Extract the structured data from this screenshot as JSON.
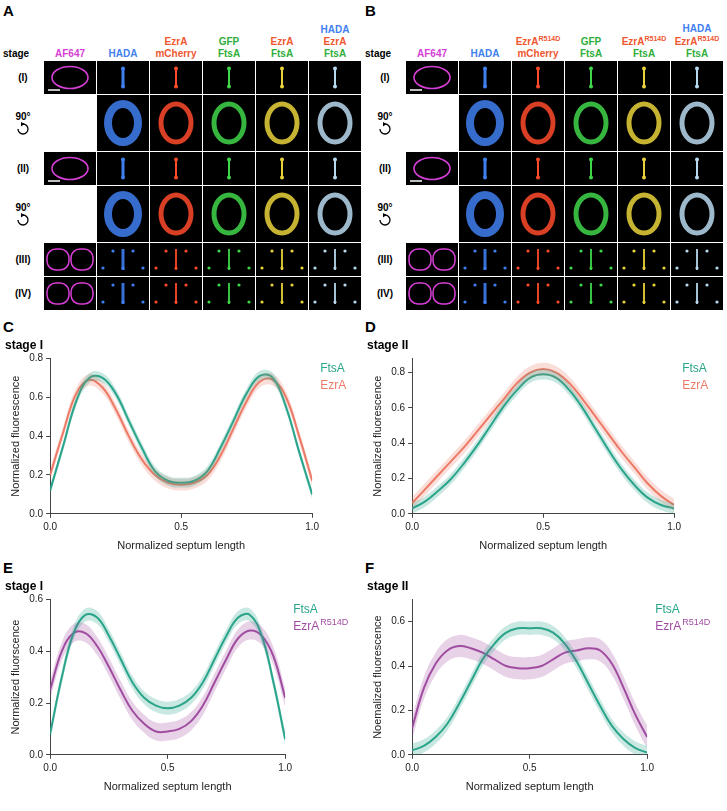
{
  "panels": [
    {
      "letter": "A",
      "stage_header": "stage",
      "columns": [
        [
          {
            "text": "AF647",
            "color": "#d63fd6"
          }
        ],
        [
          {
            "text": "HADA",
            "color": "#3f7ff0"
          }
        ],
        [
          {
            "text": "EzrA",
            "color": "#f0562f"
          },
          {
            "text": "mCherry",
            "color": "#f0562f"
          }
        ],
        [
          {
            "text": "GFP",
            "color": "#2fae3a"
          },
          {
            "text": "FtsA",
            "color": "#2fae3a"
          }
        ],
        [
          {
            "text": "EzrA",
            "color": "#f0562f"
          },
          {
            "text": "FtsA",
            "color": "#2fae3a"
          }
        ],
        [
          {
            "text": "HADA",
            "color": "#3f7ff0"
          },
          {
            "text": "EzrA",
            "color": "#f0562f"
          },
          {
            "text": "FtsA",
            "color": "#2fae3a"
          }
        ]
      ],
      "rows": [
        {
          "label": "(I)"
        },
        {
          "label": "90°",
          "rotated": true
        },
        {
          "label": "(II)"
        },
        {
          "label": "90°",
          "rotated": true
        },
        {
          "label": "(III)"
        },
        {
          "label": "(IV)"
        }
      ]
    },
    {
      "letter": "B",
      "stage_header": "stage",
      "columns": [
        [
          {
            "text": "AF647",
            "color": "#d63fd6"
          }
        ],
        [
          {
            "text": "HADA",
            "color": "#3f7ff0"
          }
        ],
        [
          {
            "text": "EzrA",
            "sup": "R514D",
            "color": "#f0562f"
          },
          {
            "text": "mCherry",
            "color": "#f0562f"
          }
        ],
        [
          {
            "text": "GFP",
            "color": "#2fae3a"
          },
          {
            "text": "FtsA",
            "color": "#2fae3a"
          }
        ],
        [
          {
            "text": "EzrA",
            "sup": "R514D",
            "color": "#f0562f"
          },
          {
            "text": "FtsA",
            "color": "#2fae3a"
          }
        ],
        [
          {
            "text": "HADA",
            "color": "#3f7ff0"
          },
          {
            "text": "EzrA",
            "sup": "R514D",
            "color": "#f0562f"
          },
          {
            "text": "FtsA",
            "color": "#2fae3a"
          }
        ]
      ],
      "rows": [
        {
          "label": "(I)"
        },
        {
          "label": "90°",
          "rotated": true
        },
        {
          "label": "(II)"
        },
        {
          "label": "90°",
          "rotated": true
        },
        {
          "label": "(III)"
        },
        {
          "label": "(IV)"
        }
      ]
    }
  ],
  "chart_data": [
    {
      "letter": "C",
      "type": "line",
      "title": "stage I",
      "x_label": "Normalized septum length",
      "y_label": "Normalized fluorescence",
      "x": [
        0,
        0.05,
        0.1,
        0.15,
        0.2,
        0.25,
        0.3,
        0.35,
        0.4,
        0.45,
        0.5,
        0.55,
        0.6,
        0.65,
        0.7,
        0.75,
        0.8,
        0.85,
        0.9,
        0.95,
        1
      ],
      "xlim": [
        0,
        1
      ],
      "xticks": [
        {
          "value": 0,
          "label": "0.0"
        },
        {
          "value": 0.5,
          "label": "0.5"
        },
        {
          "value": 1,
          "label": "1.0"
        }
      ],
      "ylim": [
        0,
        0.8
      ],
      "yticks": [
        {
          "value": 0,
          "label": "0.0"
        },
        {
          "value": 0.2,
          "label": "0.2"
        },
        {
          "value": 0.4,
          "label": "0.4"
        },
        {
          "value": 0.6,
          "label": "0.6"
        },
        {
          "value": 0.8,
          "label": "0.8"
        }
      ],
      "grid": false,
      "legend": "right",
      "series": [
        {
          "name": "FtsA",
          "color": "#2aa58a",
          "error": 0.025,
          "values": [
            0.12,
            0.35,
            0.58,
            0.7,
            0.7,
            0.62,
            0.48,
            0.34,
            0.22,
            0.17,
            0.16,
            0.17,
            0.22,
            0.34,
            0.48,
            0.62,
            0.71,
            0.7,
            0.55,
            0.32,
            0.1
          ]
        },
        {
          "name": "EzrA",
          "color": "#ec7a66",
          "error": 0.03,
          "values": [
            0.2,
            0.42,
            0.62,
            0.69,
            0.65,
            0.54,
            0.4,
            0.28,
            0.2,
            0.16,
            0.15,
            0.16,
            0.2,
            0.3,
            0.44,
            0.58,
            0.68,
            0.69,
            0.6,
            0.4,
            0.17
          ]
        }
      ]
    },
    {
      "letter": "D",
      "type": "line",
      "title": "stage II",
      "x_label": "Normalized septum length",
      "y_label": "Normalized fluorescence",
      "x": [
        0,
        0.05,
        0.1,
        0.15,
        0.2,
        0.25,
        0.3,
        0.35,
        0.4,
        0.45,
        0.5,
        0.55,
        0.6,
        0.65,
        0.7,
        0.75,
        0.8,
        0.85,
        0.9,
        0.95,
        1
      ],
      "xlim": [
        0,
        1
      ],
      "xticks": [
        {
          "value": 0,
          "label": "0.0"
        },
        {
          "value": 0.5,
          "label": "0.5"
        },
        {
          "value": 1,
          "label": "1.0"
        }
      ],
      "ylim": [
        0,
        0.88
      ],
      "yticks": [
        {
          "value": 0,
          "label": "0.0"
        },
        {
          "value": 0.2,
          "label": "0.2"
        },
        {
          "value": 0.4,
          "label": "0.4"
        },
        {
          "value": 0.6,
          "label": "0.6"
        },
        {
          "value": 0.8,
          "label": "0.8"
        }
      ],
      "grid": false,
      "legend": "right",
      "series": [
        {
          "name": "FtsA",
          "color": "#2aa58a",
          "error": 0.03,
          "values": [
            0.03,
            0.07,
            0.13,
            0.2,
            0.29,
            0.39,
            0.5,
            0.61,
            0.7,
            0.77,
            0.79,
            0.77,
            0.7,
            0.6,
            0.48,
            0.36,
            0.25,
            0.16,
            0.09,
            0.05,
            0.03
          ]
        },
        {
          "name": "EzrA",
          "color": "#ec7a66",
          "error": 0.035,
          "values": [
            0.06,
            0.14,
            0.22,
            0.3,
            0.38,
            0.47,
            0.56,
            0.65,
            0.74,
            0.8,
            0.82,
            0.8,
            0.74,
            0.65,
            0.55,
            0.45,
            0.35,
            0.26,
            0.17,
            0.1,
            0.05
          ]
        }
      ]
    },
    {
      "letter": "E",
      "type": "line",
      "title": "stage I",
      "x_label": "Normalized septum length",
      "y_label": "Normalized fluorscence",
      "x": [
        0,
        0.05,
        0.1,
        0.15,
        0.2,
        0.25,
        0.3,
        0.35,
        0.4,
        0.45,
        0.5,
        0.55,
        0.6,
        0.65,
        0.7,
        0.75,
        0.8,
        0.85,
        0.9,
        0.95,
        1
      ],
      "xlim": [
        0,
        1
      ],
      "xticks": [
        {
          "value": 0,
          "label": "0.0"
        },
        {
          "value": 0.5,
          "label": "0.5"
        },
        {
          "value": 1,
          "label": "1.0"
        }
      ],
      "ylim": [
        0,
        0.6
      ],
      "yticks": [
        {
          "value": 0,
          "label": "0.0"
        },
        {
          "value": 0.2,
          "label": "0.2"
        },
        {
          "value": 0.4,
          "label": "0.4"
        },
        {
          "value": 0.6,
          "label": "0.6"
        }
      ],
      "grid": false,
      "legend": "right",
      "series": [
        {
          "name": "FtsA",
          "color": "#2aa58a",
          "error": 0.025,
          "values": [
            0.08,
            0.3,
            0.47,
            0.54,
            0.53,
            0.46,
            0.37,
            0.28,
            0.22,
            0.19,
            0.18,
            0.19,
            0.22,
            0.28,
            0.37,
            0.46,
            0.53,
            0.54,
            0.46,
            0.28,
            0.06
          ]
        },
        {
          "name": "EzrA",
          "name_sup": "R514D",
          "color": "#a04ca0",
          "error": 0.035,
          "values": [
            0.25,
            0.4,
            0.47,
            0.47,
            0.42,
            0.34,
            0.25,
            0.17,
            0.12,
            0.09,
            0.09,
            0.1,
            0.13,
            0.19,
            0.28,
            0.37,
            0.45,
            0.48,
            0.46,
            0.38,
            0.22
          ]
        }
      ]
    },
    {
      "letter": "F",
      "type": "line",
      "title": "stage II",
      "x_label": "Normalized septum length",
      "y_label": "Noemalized fluorescence",
      "x": [
        0,
        0.05,
        0.1,
        0.15,
        0.2,
        0.25,
        0.3,
        0.35,
        0.4,
        0.45,
        0.5,
        0.55,
        0.6,
        0.65,
        0.7,
        0.75,
        0.8,
        0.85,
        0.9,
        0.95,
        1
      ],
      "xlim": [
        0,
        1
      ],
      "xticks": [
        {
          "value": 0,
          "label": "0.0"
        },
        {
          "value": 0.5,
          "label": "0.5"
        },
        {
          "value": 1,
          "label": "1.0"
        }
      ],
      "ylim": [
        0,
        0.7
      ],
      "yticks": [
        {
          "value": 0,
          "label": "0.0"
        },
        {
          "value": 0.2,
          "label": "0.2"
        },
        {
          "value": 0.4,
          "label": "0.4"
        },
        {
          "value": 0.6,
          "label": "0.6"
        }
      ],
      "grid": false,
      "legend": "right",
      "series": [
        {
          "name": "FtsA",
          "color": "#2aa58a",
          "error": 0.03,
          "values": [
            0.02,
            0.04,
            0.08,
            0.14,
            0.23,
            0.33,
            0.43,
            0.5,
            0.55,
            0.57,
            0.57,
            0.57,
            0.55,
            0.5,
            0.42,
            0.32,
            0.22,
            0.13,
            0.07,
            0.03,
            0.01
          ]
        },
        {
          "name": "EzrA",
          "name_sup": "R514D",
          "color": "#a04ca0",
          "error": 0.05,
          "values": [
            0.12,
            0.3,
            0.41,
            0.47,
            0.49,
            0.48,
            0.46,
            0.43,
            0.4,
            0.39,
            0.39,
            0.4,
            0.43,
            0.46,
            0.47,
            0.48,
            0.47,
            0.41,
            0.3,
            0.18,
            0.08
          ]
        }
      ]
    }
  ]
}
